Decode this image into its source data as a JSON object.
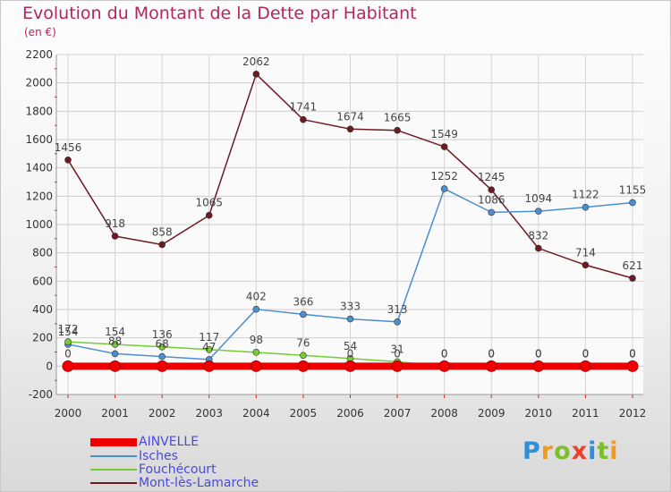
{
  "title": "Evolution du Montant de la Dette par Habitant",
  "subtitle": "(en €)",
  "logo": {
    "text": "Proxiti",
    "colors": [
      "#2f8fd8",
      "#f39a1e",
      "#7cbf2b",
      "#e8432d",
      "#2f8fd8",
      "#7cbf2b",
      "#f39a1e"
    ]
  },
  "chart_data": {
    "type": "line",
    "x": [
      "2000",
      "2001",
      "2002",
      "2003",
      "2004",
      "2005",
      "2006",
      "2007",
      "2008",
      "2009",
      "2010",
      "2011",
      "2012"
    ],
    "ylim": [
      -200,
      2200
    ],
    "yticks": [
      -200,
      0,
      200,
      400,
      600,
      800,
      1000,
      1200,
      1400,
      1600,
      1800,
      2000,
      2200
    ],
    "grid": true,
    "legend_position": "bottom-left",
    "series": [
      {
        "name": "AINVELLE",
        "color": "#ee0000",
        "values": [
          0,
          0,
          0,
          0,
          0,
          0,
          0,
          0,
          0,
          0,
          0,
          0,
          0
        ],
        "labels": []
      },
      {
        "name": "Isches",
        "color": "#4a90d0",
        "values": [
          154,
          88,
          68,
          47,
          402,
          366,
          333,
          313,
          1252,
          1086,
          1094,
          1122,
          1155
        ],
        "labels": [
          "154",
          "88",
          "68",
          "47",
          "402",
          "366",
          "333",
          "313",
          "1252",
          "1086",
          "1094",
          "1122",
          "1155"
        ]
      },
      {
        "name": "Fouchécourt",
        "color": "#77cc33",
        "values": [
          172,
          154,
          136,
          117,
          98,
          76,
          54,
          31,
          0,
          0,
          0,
          0,
          0
        ],
        "labels": [
          "172",
          "154",
          "136",
          "117",
          "98",
          "76",
          "54",
          "31",
          "0",
          "0",
          "0",
          "0",
          "0"
        ]
      },
      {
        "name": "Mont-lès-Lamarche",
        "color": "#6e1a22",
        "values": [
          1456,
          918,
          858,
          1065,
          2062,
          1741,
          1674,
          1665,
          1549,
          1245,
          832,
          714,
          621
        ],
        "labels": [
          "1456",
          "918",
          "858",
          "1065",
          "2062",
          "1741",
          "1674",
          "1665",
          "1549",
          "1245",
          "832",
          "714",
          "621"
        ]
      }
    ],
    "extra_labels": [
      {
        "series": "AINVELLE",
        "x": "2000",
        "y": 0,
        "text": "0"
      },
      {
        "series": "AINVELLE",
        "x": "2006",
        "y": 0,
        "text": "0"
      },
      {
        "series": "AINVELLE",
        "x": "2007",
        "y": 0,
        "text": "0"
      },
      {
        "series": "AINVELLE",
        "x": "2008",
        "y": 0,
        "text": "0"
      },
      {
        "series": "AINVELLE",
        "x": "2009",
        "y": 0,
        "text": "0"
      },
      {
        "series": "AINVELLE",
        "x": "2010",
        "y": 0,
        "text": "0"
      },
      {
        "series": "AINVELLE",
        "x": "2011",
        "y": 0,
        "text": "0"
      },
      {
        "series": "AINVELLE",
        "x": "2012",
        "y": 0,
        "text": "0"
      }
    ]
  }
}
